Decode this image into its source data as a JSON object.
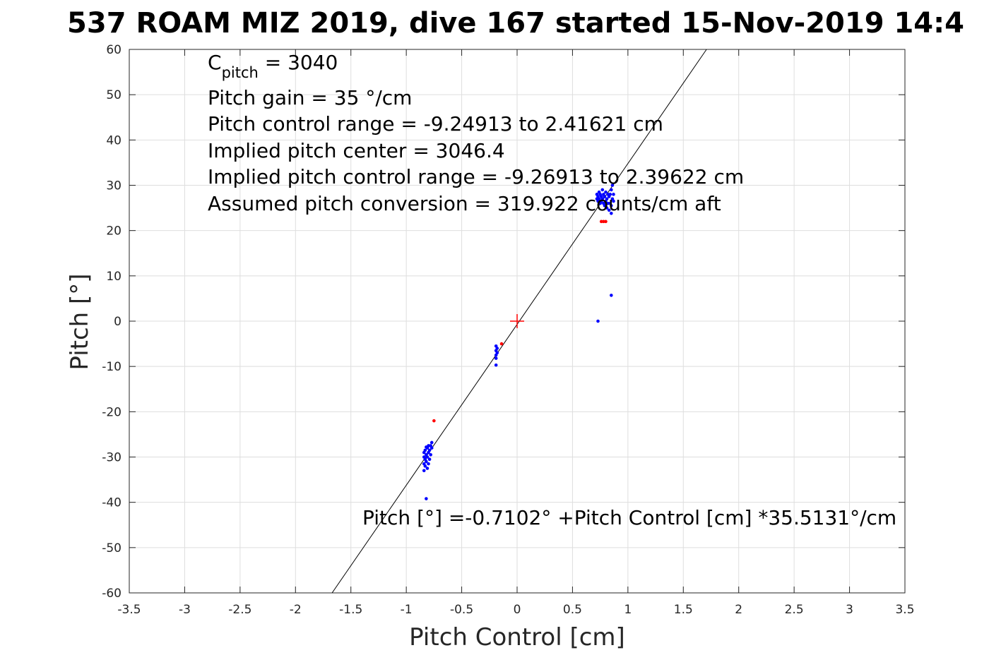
{
  "chart_data": {
    "type": "scatter",
    "title": "537 ROAM MIZ 2019, dive 167 started 15-Nov-2019 14:4",
    "xlabel": "Pitch Control [cm]",
    "ylabel": "Pitch [°]",
    "xlim": [
      -3.5,
      3.5
    ],
    "ylim": [
      -60,
      60
    ],
    "xticks": [
      -3.5,
      -3,
      -2.5,
      -2,
      -1.5,
      -1,
      -0.5,
      0,
      0.5,
      1,
      1.5,
      2,
      2.5,
      3,
      3.5
    ],
    "xtick_labels": [
      "-3.5",
      "-3",
      "-2.5",
      "-2",
      "-1.5",
      "-1",
      "-0.5",
      "0",
      "0.5",
      "1",
      "1.5",
      "2",
      "2.5",
      "3",
      "3.5"
    ],
    "yticks": [
      -60,
      -50,
      -40,
      -30,
      -20,
      -10,
      0,
      10,
      20,
      30,
      40,
      50,
      60
    ],
    "ytick_labels": [
      "-60",
      "-50",
      "-40",
      "-30",
      "-20",
      "-10",
      "0",
      "10",
      "20",
      "30",
      "40",
      "50",
      "60"
    ],
    "grid": true,
    "fit_line": {
      "intercept": -0.7102,
      "slope": 35.5131
    },
    "center_marker": {
      "x": 0,
      "y": 0,
      "color": "#ff0000"
    },
    "series": [
      {
        "color": "#0000ff",
        "points": [
          [
            -0.84,
            -33.0
          ],
          [
            -0.84,
            -31.5
          ],
          [
            -0.84,
            -30.0
          ],
          [
            -0.84,
            -29.0
          ],
          [
            -0.83,
            -32.0
          ],
          [
            -0.83,
            -30.5
          ],
          [
            -0.83,
            -28.5
          ],
          [
            -0.82,
            -31.0
          ],
          [
            -0.82,
            -29.5
          ],
          [
            -0.82,
            -27.8
          ],
          [
            -0.81,
            -32.5
          ],
          [
            -0.81,
            -30.0
          ],
          [
            -0.81,
            -28.0
          ],
          [
            -0.8,
            -31.5
          ],
          [
            -0.8,
            -29.0
          ],
          [
            -0.8,
            -27.5
          ],
          [
            -0.79,
            -30.5
          ],
          [
            -0.79,
            -28.5
          ],
          [
            -0.78,
            -29.5
          ],
          [
            -0.78,
            -27.5
          ],
          [
            -0.77,
            -28.0
          ],
          [
            -0.77,
            -26.8
          ],
          [
            -0.82,
            -39.2
          ],
          [
            -0.19,
            -5.5
          ],
          [
            -0.19,
            -6.5
          ],
          [
            -0.19,
            -7.5
          ],
          [
            -0.19,
            -8.2
          ],
          [
            -0.18,
            -6.0
          ],
          [
            -0.18,
            -7.0
          ],
          [
            -0.19,
            -9.7
          ],
          [
            0.72,
            28.0
          ],
          [
            0.72,
            27.0
          ],
          [
            0.73,
            27.5
          ],
          [
            0.73,
            26.5
          ],
          [
            0.74,
            28.5
          ],
          [
            0.74,
            27.0
          ],
          [
            0.75,
            26.0
          ],
          [
            0.75,
            28.0
          ],
          [
            0.76,
            27.5
          ],
          [
            0.76,
            26.5
          ],
          [
            0.77,
            29.0
          ],
          [
            0.77,
            27.0
          ],
          [
            0.78,
            28.0
          ],
          [
            0.78,
            26.0
          ],
          [
            0.79,
            27.5
          ],
          [
            0.79,
            25.5
          ],
          [
            0.8,
            28.5
          ],
          [
            0.8,
            26.5
          ],
          [
            0.81,
            27.0
          ],
          [
            0.81,
            25.0
          ],
          [
            0.82,
            28.0
          ],
          [
            0.82,
            26.0
          ],
          [
            0.83,
            27.5
          ],
          [
            0.83,
            24.5
          ],
          [
            0.84,
            28.0
          ],
          [
            0.84,
            26.0
          ],
          [
            0.85,
            29.0
          ],
          [
            0.85,
            25.5
          ],
          [
            0.85,
            23.8
          ],
          [
            0.86,
            27.0
          ],
          [
            0.86,
            30.0
          ],
          [
            0.87,
            26.5
          ],
          [
            0.87,
            28.0
          ],
          [
            0.85,
            5.7
          ],
          [
            0.73,
            0.0
          ]
        ]
      },
      {
        "color": "#ff0000",
        "points": [
          [
            -0.75,
            -22.0
          ],
          [
            -0.14,
            -5.0
          ],
          [
            0.76,
            22.0
          ],
          [
            0.78,
            22.0
          ],
          [
            0.8,
            22.0
          ]
        ]
      }
    ],
    "annotations": {
      "c_label": "C",
      "c_sub": "pitch",
      "c_value": " = 3040",
      "lines": [
        "Pitch gain = 35 °/cm",
        "Pitch control range = -9.24913 to 2.41621 cm",
        "Implied pitch center = 3046.4",
        "Implied pitch control range = -9.26913 to 2.39622 cm",
        "Assumed pitch conversion = 319.922 counts/cm aft"
      ],
      "fit_label": "Pitch [°] =-0.7102° +Pitch Control [cm] *35.5131°/cm"
    }
  }
}
